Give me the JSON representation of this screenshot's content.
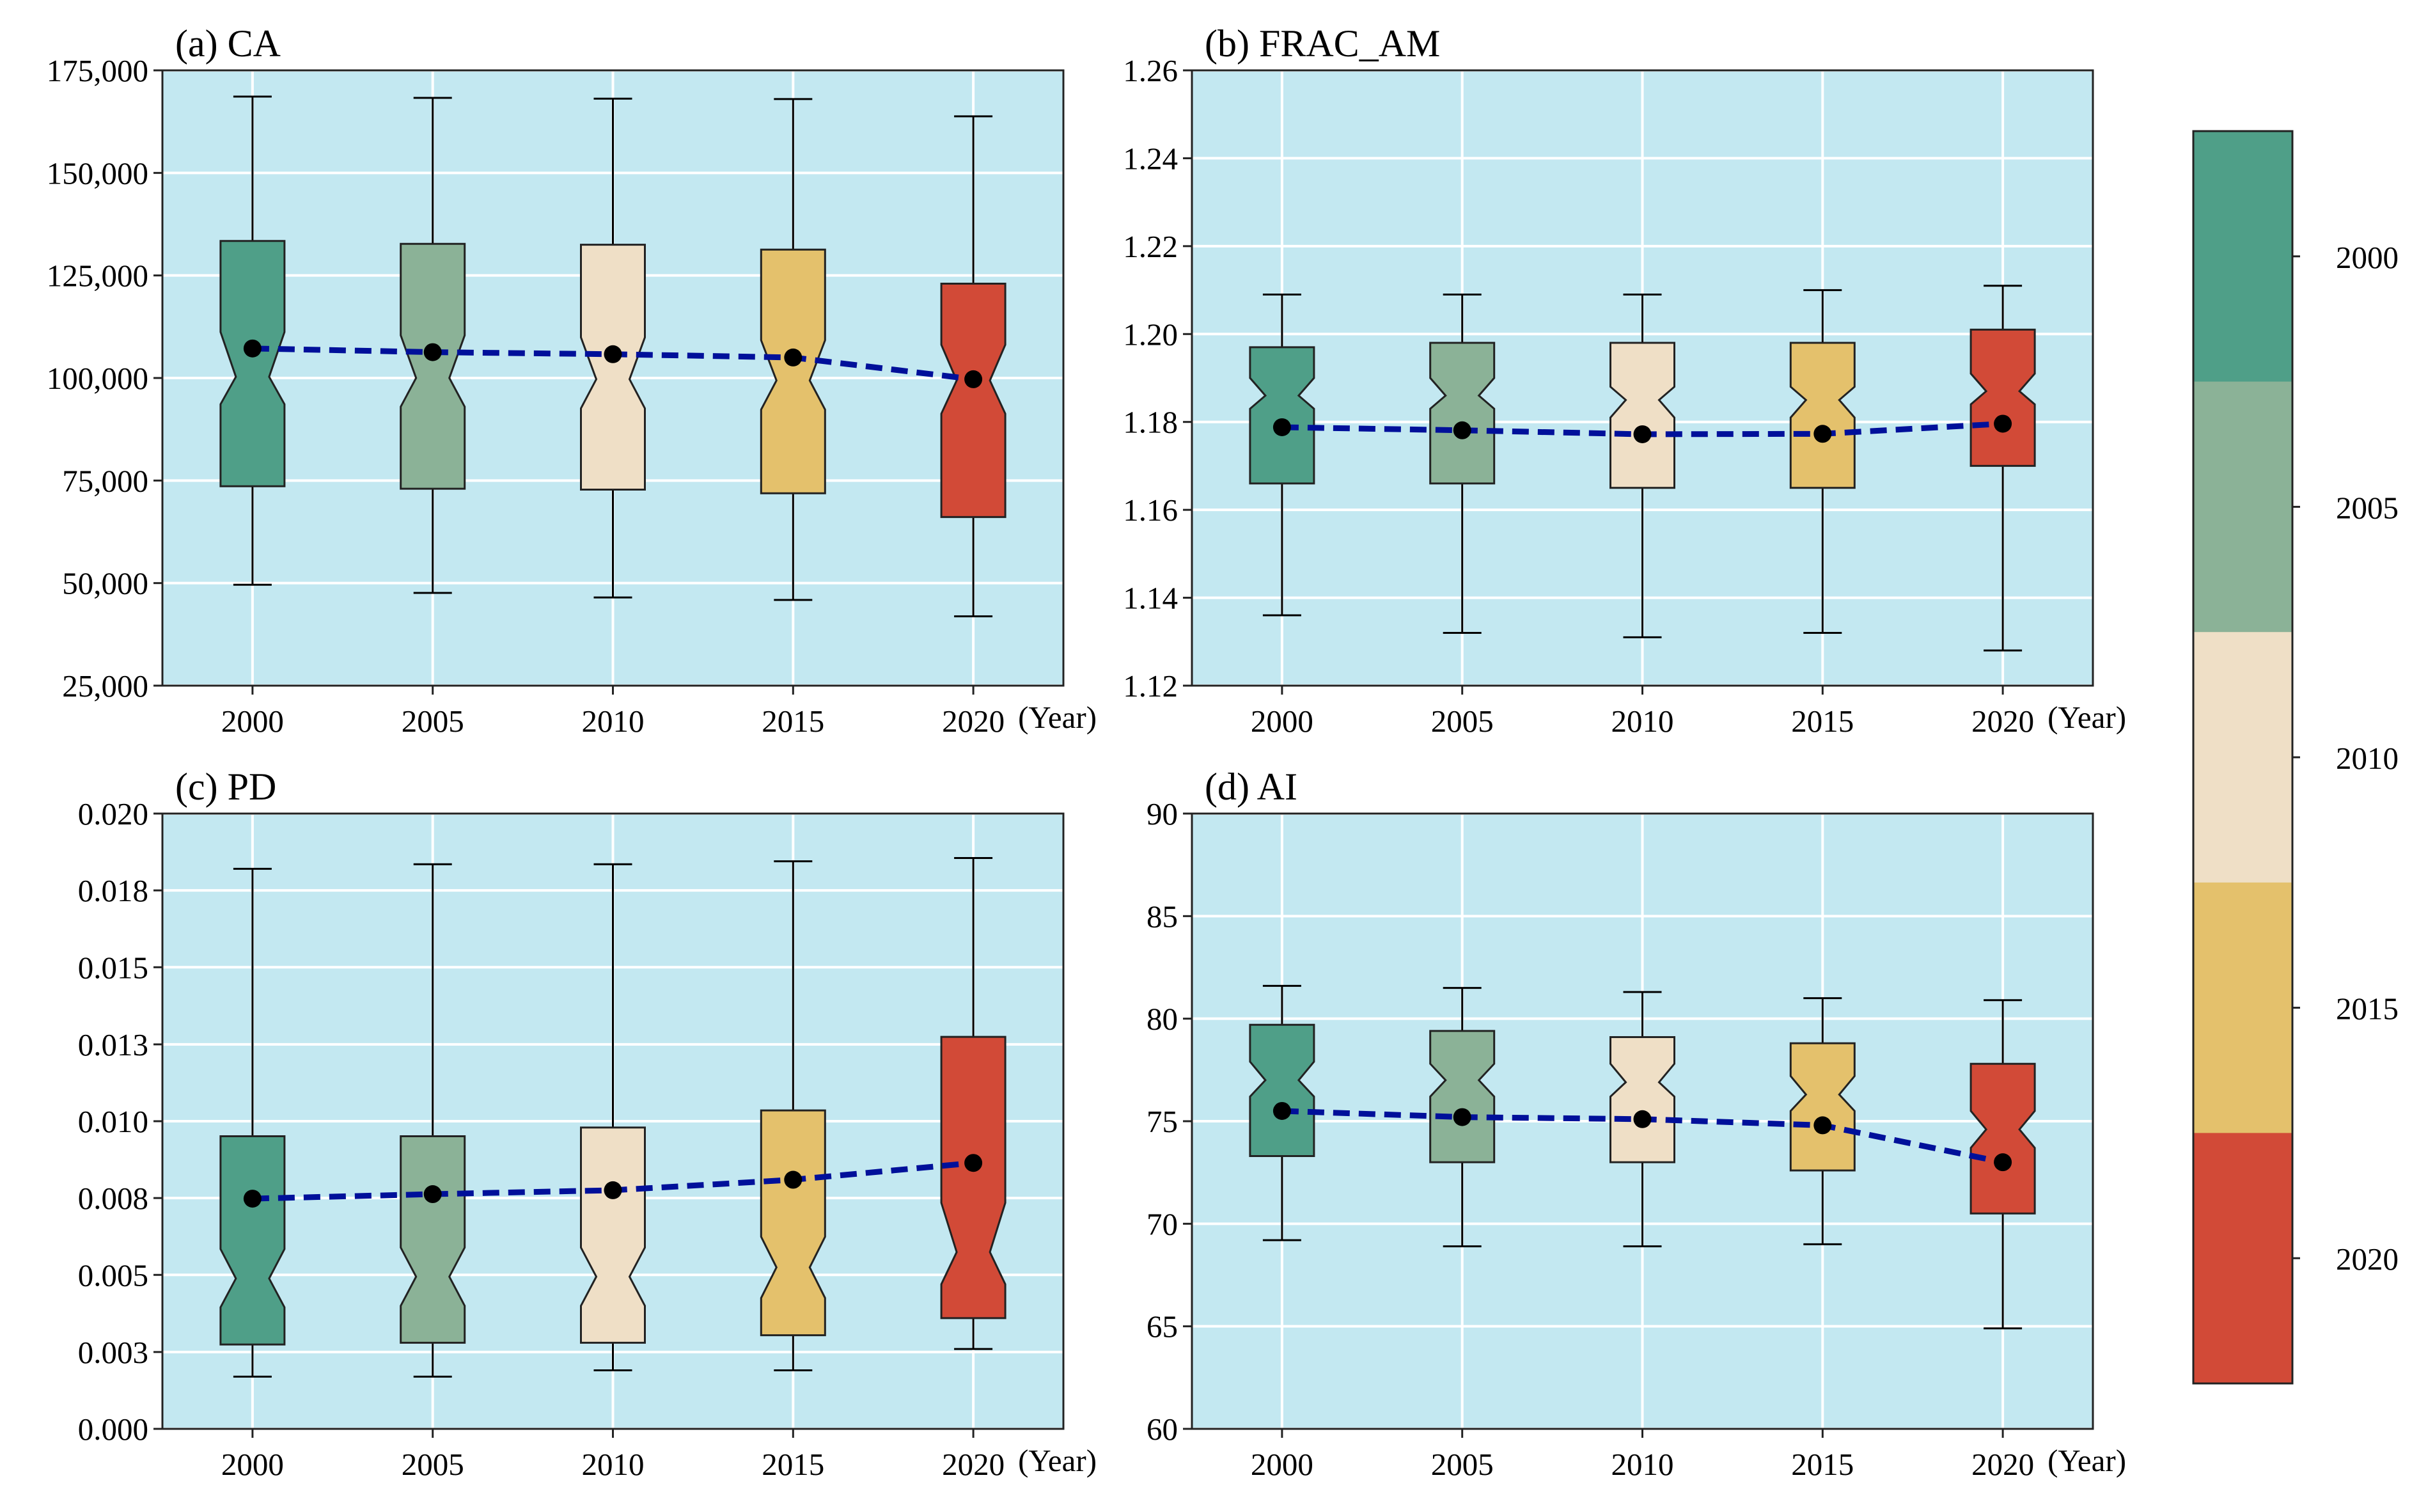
{
  "colors": {
    "panel_bg": "#c3e8f1",
    "grid": "#ffffff",
    "mean_line": "#00109a",
    "mean_point": "#000000",
    "year_colors": [
      "#4f9f88",
      "#8bb297",
      "#efdfc6",
      "#e4c16c",
      "#d24a37"
    ]
  },
  "colorbar": {
    "labels": [
      "2000",
      "2005",
      "2010",
      "2015",
      "2020"
    ]
  },
  "chart_data": [
    {
      "type": "boxplot",
      "title": "(a) CA",
      "categories": [
        "2000",
        "2005",
        "2010",
        "2015",
        "2020"
      ],
      "x_unit_label": "(Year)",
      "ylim": [
        25000,
        175000
      ],
      "yticks": [
        25000,
        50000,
        75000,
        100000,
        125000,
        150000,
        175000
      ],
      "ytick_labels": [
        "25,000",
        "50,000",
        "75,000",
        "100,000",
        "125,000",
        "150,000",
        "175,000"
      ],
      "boxes": [
        {
          "whisker_low": 49600,
          "q1": 73600,
          "median": 100300,
          "q3": 133400,
          "whisker_high": 168600,
          "notch_low": 93600,
          "notch_high": 111200,
          "mean": 107200
        },
        {
          "whisker_low": 47600,
          "q1": 73000,
          "median": 100000,
          "q3": 132700,
          "whisker_high": 168300,
          "notch_low": 93000,
          "notch_high": 110400,
          "mean": 106300
        },
        {
          "whisker_low": 46500,
          "q1": 72800,
          "median": 99700,
          "q3": 132500,
          "whisker_high": 168100,
          "notch_low": 92600,
          "notch_high": 109900,
          "mean": 105800
        },
        {
          "whisker_low": 45900,
          "q1": 71900,
          "median": 99400,
          "q3": 131300,
          "whisker_high": 168000,
          "notch_low": 92300,
          "notch_high": 109200,
          "mean": 105000
        },
        {
          "whisker_low": 41900,
          "q1": 66100,
          "median": 99400,
          "q3": 123000,
          "whisker_high": 163800,
          "notch_low": 91300,
          "notch_high": 108100,
          "mean": 99700
        }
      ]
    },
    {
      "type": "boxplot",
      "title": "(b) FRAC_AM",
      "categories": [
        "2000",
        "2005",
        "2010",
        "2015",
        "2020"
      ],
      "x_unit_label": "(Year)",
      "ylim": [
        1.12,
        1.26
      ],
      "yticks": [
        1.12,
        1.14,
        1.16,
        1.18,
        1.2,
        1.22,
        1.24,
        1.26
      ],
      "ytick_labels": [
        "1.12",
        "1.14",
        "1.16",
        "1.18",
        "1.20",
        "1.22",
        "1.24",
        "1.26"
      ],
      "boxes": [
        {
          "whisker_low": 1.136,
          "q1": 1.166,
          "median": 1.186,
          "q3": 1.197,
          "whisker_high": 1.209,
          "notch_low": 1.183,
          "notch_high": 1.19,
          "mean": 1.1788
        },
        {
          "whisker_low": 1.132,
          "q1": 1.166,
          "median": 1.186,
          "q3": 1.198,
          "whisker_high": 1.209,
          "notch_low": 1.183,
          "notch_high": 1.19,
          "mean": 1.1781
        },
        {
          "whisker_low": 1.131,
          "q1": 1.165,
          "median": 1.185,
          "q3": 1.198,
          "whisker_high": 1.209,
          "notch_low": 1.181,
          "notch_high": 1.188,
          "mean": 1.1772
        },
        {
          "whisker_low": 1.132,
          "q1": 1.165,
          "median": 1.185,
          "q3": 1.198,
          "whisker_high": 1.21,
          "notch_low": 1.181,
          "notch_high": 1.188,
          "mean": 1.1773
        },
        {
          "whisker_low": 1.128,
          "q1": 1.17,
          "median": 1.187,
          "q3": 1.201,
          "whisker_high": 1.211,
          "notch_low": 1.184,
          "notch_high": 1.191,
          "mean": 1.1796
        }
      ]
    },
    {
      "type": "boxplot",
      "title": "(c) PD",
      "categories": [
        "2000",
        "2005",
        "2010",
        "2015",
        "2020"
      ],
      "x_unit_label": "(Year)",
      "ylim": [
        0.0,
        0.0205
      ],
      "yticks": [
        0.0,
        0.00256,
        0.00513,
        0.00769,
        0.01025,
        0.01281,
        0.01538,
        0.01794,
        0.0205
      ],
      "ytick_labels": [
        "0.000",
        "0.003",
        "0.005",
        "0.008",
        "0.010",
        "0.013",
        "0.015",
        "0.018",
        "0.020"
      ],
      "boxes": [
        {
          "whisker_low": 0.00174,
          "q1": 0.00281,
          "median": 0.00501,
          "q3": 0.00975,
          "whisker_high": 0.01866,
          "notch_low": 0.00405,
          "notch_high": 0.00599,
          "mean": 0.00767
        },
        {
          "whisker_low": 0.00174,
          "q1": 0.00287,
          "median": 0.00507,
          "q3": 0.00975,
          "whisker_high": 0.01881,
          "notch_low": 0.0041,
          "notch_high": 0.00604,
          "mean": 0.00782
        },
        {
          "whisker_low": 0.00195,
          "q1": 0.00287,
          "median": 0.00507,
          "q3": 0.01004,
          "whisker_high": 0.01881,
          "notch_low": 0.0041,
          "notch_high": 0.00604,
          "mean": 0.00795
        },
        {
          "whisker_low": 0.00195,
          "q1": 0.00312,
          "median": 0.00538,
          "q3": 0.01061,
          "whisker_high": 0.01891,
          "notch_low": 0.00436,
          "notch_high": 0.0064,
          "mean": 0.0083
        },
        {
          "whisker_low": 0.00266,
          "q1": 0.00369,
          "median": 0.00589,
          "q3": 0.01306,
          "whisker_high": 0.01902,
          "notch_low": 0.00482,
          "notch_high": 0.00753,
          "mean": 0.00886
        }
      ]
    },
    {
      "type": "boxplot",
      "title": "(d) AI",
      "categories": [
        "2000",
        "2005",
        "2010",
        "2015",
        "2020"
      ],
      "x_unit_label": "(Year)",
      "ylim": [
        60,
        90
      ],
      "yticks": [
        60,
        65,
        70,
        75,
        80,
        85,
        90
      ],
      "ytick_labels": [
        "60",
        "65",
        "70",
        "75",
        "80",
        "85",
        "90"
      ],
      "boxes": [
        {
          "whisker_low": 69.2,
          "q1": 73.3,
          "median": 77.0,
          "q3": 79.7,
          "whisker_high": 81.6,
          "notch_low": 76.2,
          "notch_high": 77.9,
          "mean": 75.5
        },
        {
          "whisker_low": 68.9,
          "q1": 73.0,
          "median": 77.0,
          "q3": 79.4,
          "whisker_high": 81.5,
          "notch_low": 76.2,
          "notch_high": 77.8,
          "mean": 75.2
        },
        {
          "whisker_low": 68.9,
          "q1": 73.0,
          "median": 76.9,
          "q3": 79.1,
          "whisker_high": 81.3,
          "notch_low": 76.2,
          "notch_high": 77.8,
          "mean": 75.1
        },
        {
          "whisker_low": 69.0,
          "q1": 72.6,
          "median": 76.3,
          "q3": 78.8,
          "whisker_high": 81.0,
          "notch_low": 75.5,
          "notch_high": 77.2,
          "mean": 74.8
        },
        {
          "whisker_low": 64.9,
          "q1": 70.5,
          "median": 74.6,
          "q3": 77.8,
          "whisker_high": 80.9,
          "notch_low": 73.7,
          "notch_high": 75.5,
          "mean": 73.0
        }
      ]
    }
  ]
}
